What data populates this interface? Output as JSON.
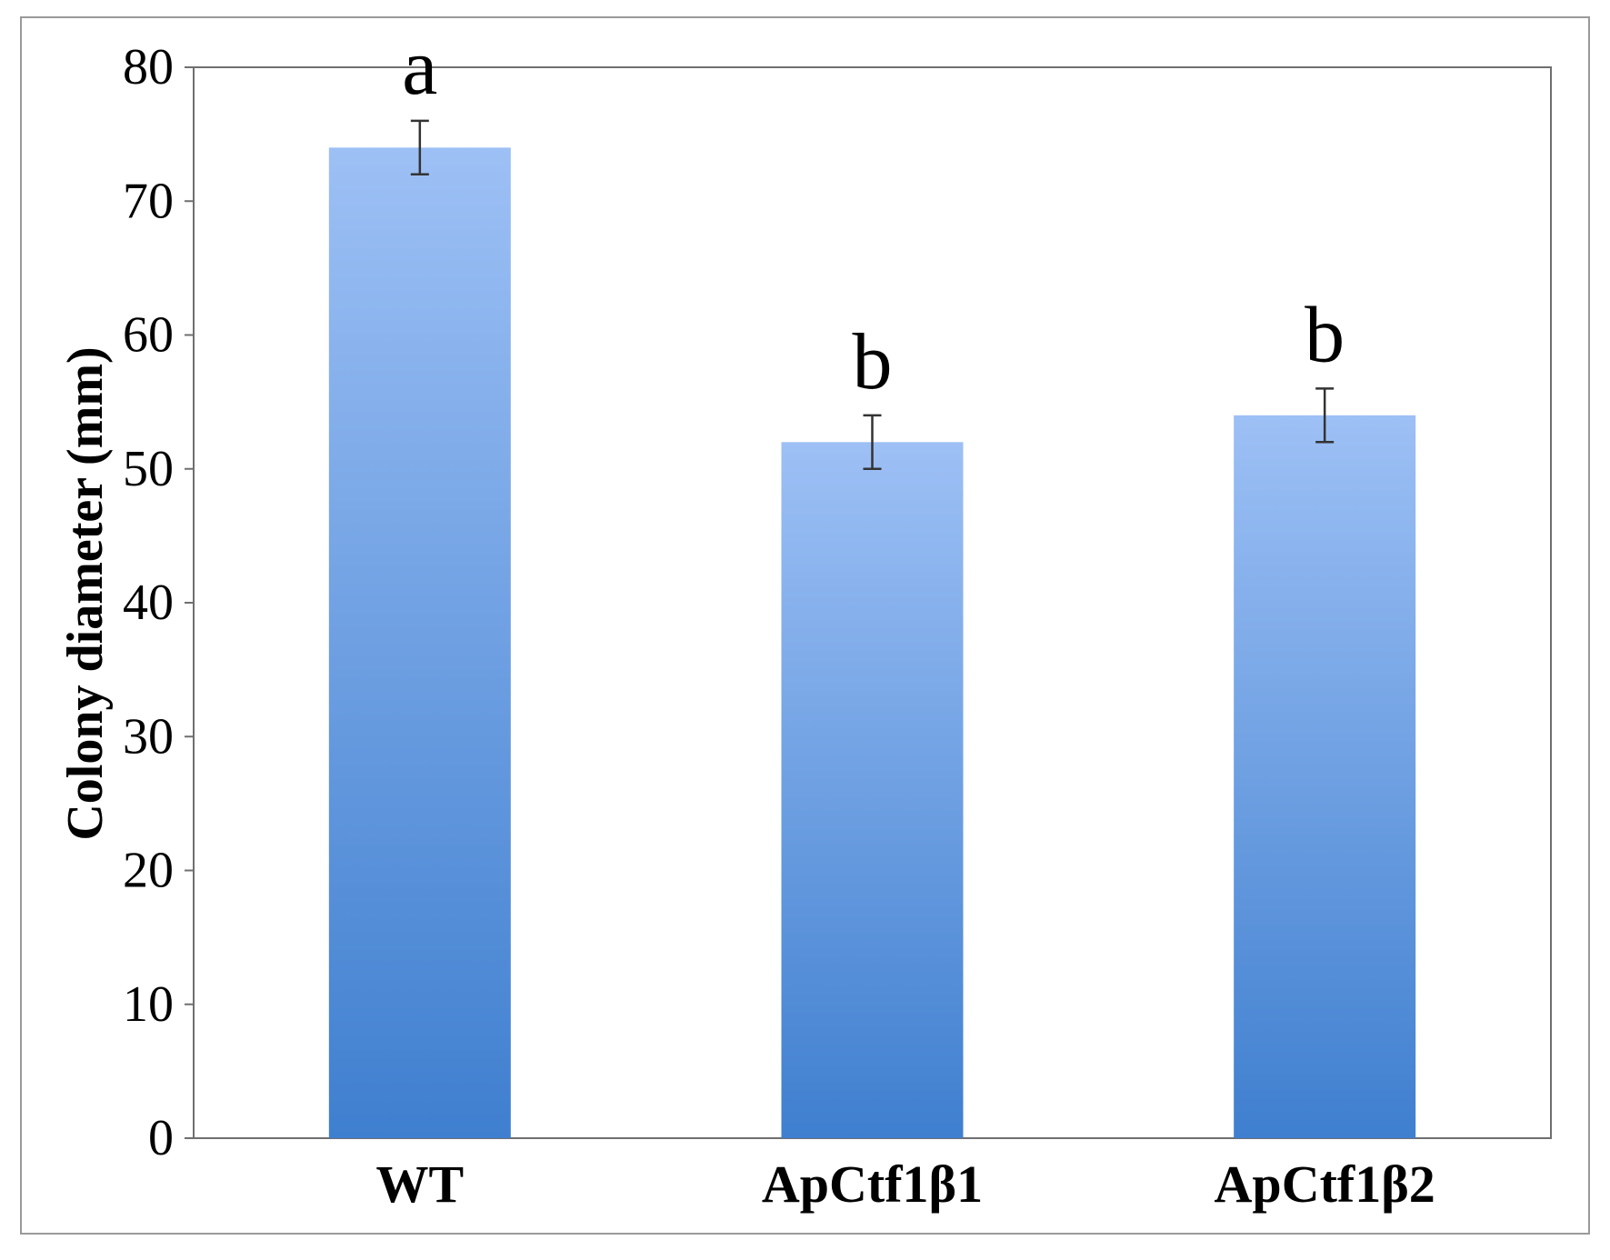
{
  "chart_data": {
    "type": "bar",
    "title": "",
    "xlabel": "",
    "ylabel": "Colony diameter (mm)",
    "categories": [
      "WT",
      "ApCtf1β1",
      "ApCtf1β2"
    ],
    "values": [
      74,
      52,
      54
    ],
    "errors": [
      2,
      2,
      2
    ],
    "significance_labels": [
      "a",
      "b",
      "b"
    ],
    "ylim": [
      0,
      80
    ],
    "yticks": [
      "0",
      "10",
      "20",
      "30",
      "40",
      "50",
      "60",
      "70",
      "80"
    ],
    "grid": false,
    "legend": "none",
    "colors": {
      "bar_top": "#9dc0f5",
      "bar_bottom": "#3f7fcf",
      "error_bar": "#333333",
      "axis": "#6f6f6f"
    }
  }
}
